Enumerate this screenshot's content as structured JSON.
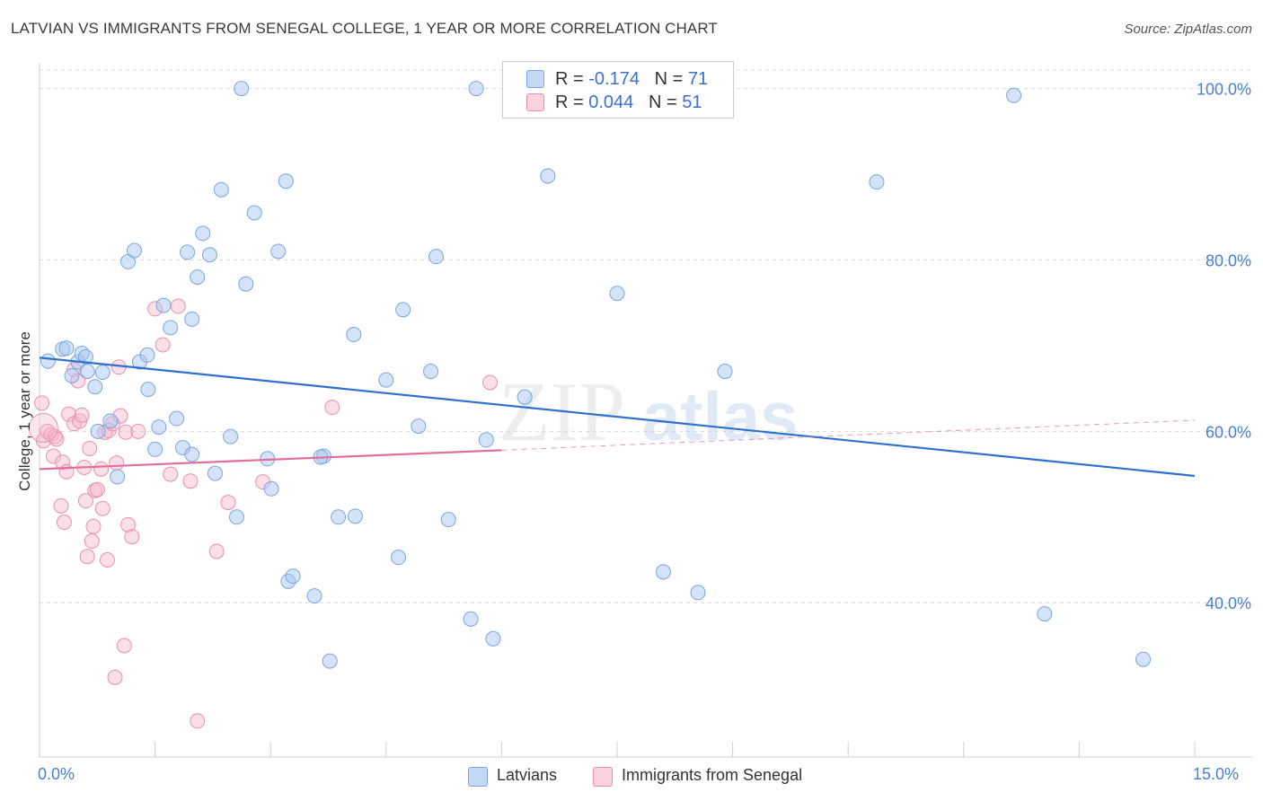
{
  "header": {
    "title": "LATVIAN VS IMMIGRANTS FROM SENEGAL COLLEGE, 1 YEAR OR MORE CORRELATION CHART",
    "source": "Source: ZipAtlas.com"
  },
  "watermark": {
    "zip": "ZIP",
    "atlas": "atlas"
  },
  "legend": {
    "rows": [
      {
        "r_label": "R = ",
        "r_value": "-0.174",
        "n_label": "N = ",
        "n_value": "71",
        "color": "#a9c7ef"
      },
      {
        "r_label": "R = ",
        "r_value": "0.044",
        "n_label": "N = ",
        "n_value": "51",
        "color": "#f5b8cc"
      }
    ]
  },
  "bottom_legend": {
    "latvians": "Latvians",
    "senegal": "Immigrants from Senegal"
  },
  "chart_data": {
    "type": "scatter",
    "title": "LATVIAN VS IMMIGRANTS FROM SENEGAL COLLEGE, 1 YEAR OR MORE CORRELATION CHART",
    "ylabel": "College, 1 year or more",
    "xlabel": "",
    "x_tick_labels": [
      "0.0%",
      "15.0%"
    ],
    "y_tick_labels": [
      "40.0%",
      "60.0%",
      "80.0%",
      "100.0%"
    ],
    "xlim": [
      0,
      15
    ],
    "ylim": [
      22,
      103
    ],
    "y_ticks": [
      40,
      60,
      80,
      100
    ],
    "grid": true,
    "legend_position": "top-center",
    "colors": {
      "latvians_fill": "#a9c7ef",
      "latvians_edge": "#7aa6e0",
      "latvians_line": "#2f6fd0",
      "senegal_fill": "#f5b8cc",
      "senegal_edge": "#ea8fae",
      "senegal_line": "#e0709a"
    },
    "series": [
      {
        "name": "Latvians",
        "trend": {
          "x": [
            0,
            15
          ],
          "y": [
            68.6,
            54.8
          ]
        },
        "points": [
          [
            0.11,
            68.2
          ],
          [
            0.3,
            69.6
          ],
          [
            0.35,
            69.7
          ],
          [
            0.42,
            66.5
          ],
          [
            0.5,
            68.1
          ],
          [
            0.55,
            69.1
          ],
          [
            0.6,
            68.7
          ],
          [
            0.72,
            65.2
          ],
          [
            0.82,
            66.9
          ],
          [
            0.92,
            61.2
          ],
          [
            1.01,
            54.7
          ],
          [
            1.15,
            79.8
          ],
          [
            1.23,
            81.1
          ],
          [
            1.3,
            68.1
          ],
          [
            1.41,
            64.9
          ],
          [
            1.5,
            57.9
          ],
          [
            1.55,
            60.5
          ],
          [
            1.61,
            74.7
          ],
          [
            1.7,
            72.1
          ],
          [
            1.78,
            61.5
          ],
          [
            1.86,
            58.1
          ],
          [
            1.92,
            80.9
          ],
          [
            1.98,
            73.1
          ],
          [
            2.05,
            78.0
          ],
          [
            2.12,
            83.1
          ],
          [
            2.21,
            80.6
          ],
          [
            2.28,
            55.1
          ],
          [
            2.36,
            88.2
          ],
          [
            2.48,
            59.4
          ],
          [
            2.62,
            100.0
          ],
          [
            2.56,
            50.0
          ],
          [
            2.68,
            77.2
          ],
          [
            2.79,
            85.5
          ],
          [
            2.96,
            56.8
          ],
          [
            3.01,
            53.3
          ],
          [
            3.1,
            81.0
          ],
          [
            3.2,
            89.2
          ],
          [
            3.23,
            42.5
          ],
          [
            3.29,
            43.1
          ],
          [
            3.57,
            40.8
          ],
          [
            3.69,
            57.1
          ],
          [
            3.77,
            33.2
          ],
          [
            3.88,
            50.0
          ],
          [
            4.08,
            71.3
          ],
          [
            4.1,
            50.1
          ],
          [
            4.5,
            66.0
          ],
          [
            4.66,
            45.3
          ],
          [
            4.72,
            74.2
          ],
          [
            4.92,
            60.6
          ],
          [
            5.08,
            67.0
          ],
          [
            5.15,
            80.4
          ],
          [
            5.31,
            49.7
          ],
          [
            5.6,
            38.1
          ],
          [
            5.67,
            100.0
          ],
          [
            5.8,
            59.0
          ],
          [
            5.89,
            35.8
          ],
          [
            6.3,
            64.0
          ],
          [
            6.6,
            89.8
          ],
          [
            7.5,
            76.1
          ],
          [
            8.1,
            43.6
          ],
          [
            8.55,
            41.2
          ],
          [
            8.9,
            67.0
          ],
          [
            10.87,
            89.1
          ],
          [
            12.65,
            99.2
          ],
          [
            13.05,
            38.7
          ],
          [
            14.33,
            33.4
          ],
          [
            0.62,
            67.0
          ],
          [
            1.4,
            68.9
          ],
          [
            0.76,
            60.0
          ],
          [
            1.98,
            57.3
          ],
          [
            3.65,
            57.0
          ]
        ]
      },
      {
        "name": "Immigrants from Senegal",
        "trend": {
          "x": [
            0,
            6
          ],
          "y": [
            55.6,
            57.8
          ],
          "dashed_to": {
            "x": 15,
            "y": 61.3
          }
        },
        "points": [
          [
            0.03,
            63.3
          ],
          [
            0.05,
            58.9
          ],
          [
            0.1,
            60.0
          ],
          [
            0.15,
            59.6
          ],
          [
            0.18,
            57.1
          ],
          [
            0.2,
            59.4
          ],
          [
            0.22,
            59.1
          ],
          [
            0.28,
            51.3
          ],
          [
            0.3,
            56.4
          ],
          [
            0.32,
            49.4
          ],
          [
            0.35,
            55.3
          ],
          [
            0.38,
            62.0
          ],
          [
            0.45,
            60.9
          ],
          [
            0.45,
            67.2
          ],
          [
            0.5,
            65.9
          ],
          [
            0.52,
            61.2
          ],
          [
            0.55,
            61.9
          ],
          [
            0.58,
            55.8
          ],
          [
            0.6,
            51.9
          ],
          [
            0.62,
            45.4
          ],
          [
            0.65,
            58.0
          ],
          [
            0.68,
            47.2
          ],
          [
            0.7,
            48.9
          ],
          [
            0.72,
            53.1
          ],
          [
            0.75,
            53.2
          ],
          [
            0.8,
            55.6
          ],
          [
            0.82,
            51.0
          ],
          [
            0.85,
            59.9
          ],
          [
            0.88,
            45.0
          ],
          [
            0.9,
            60.1
          ],
          [
            0.95,
            60.9
          ],
          [
            0.98,
            31.3
          ],
          [
            1.0,
            56.3
          ],
          [
            1.03,
            67.5
          ],
          [
            1.05,
            61.8
          ],
          [
            1.1,
            35.0
          ],
          [
            1.12,
            59.9
          ],
          [
            1.15,
            49.1
          ],
          [
            1.2,
            47.7
          ],
          [
            1.28,
            60.0
          ],
          [
            1.5,
            74.3
          ],
          [
            1.6,
            70.1
          ],
          [
            1.7,
            55.0
          ],
          [
            1.8,
            74.6
          ],
          [
            1.96,
            54.2
          ],
          [
            2.05,
            26.2
          ],
          [
            2.3,
            46.0
          ],
          [
            2.45,
            51.7
          ],
          [
            2.9,
            54.1
          ],
          [
            3.8,
            62.8
          ],
          [
            5.85,
            65.7
          ]
        ]
      }
    ]
  }
}
